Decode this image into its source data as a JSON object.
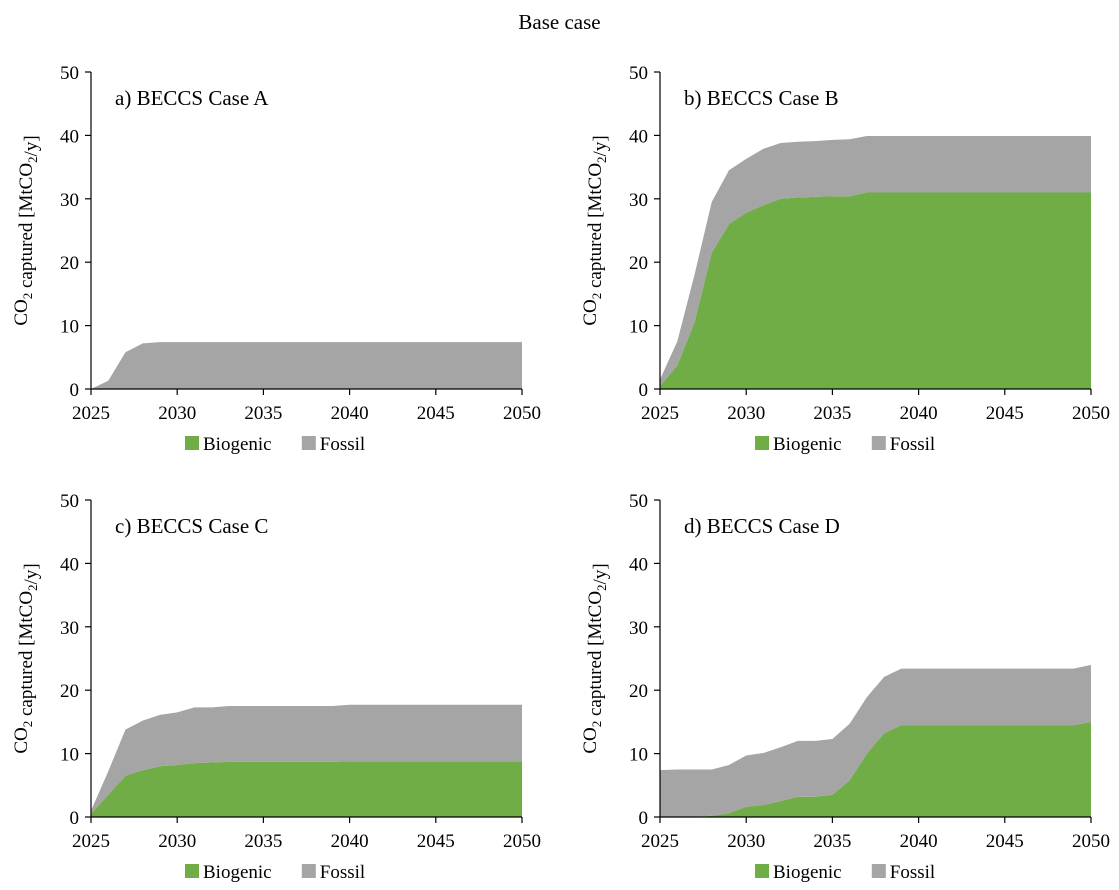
{
  "figure_title": "Base case",
  "colors": {
    "biogenic": "#70ad47",
    "fossil": "#a5a5a5",
    "axis": "#000000"
  },
  "chart_data": [
    {
      "type": "area",
      "title": "a) BECCS Case A",
      "ylabel": "CO2 captured [MtCO2/y]",
      "ylim": [
        0,
        50
      ],
      "yticks": [
        0,
        10,
        20,
        30,
        40,
        50
      ],
      "xlim": [
        2025,
        2050
      ],
      "xticks": [
        2025,
        2030,
        2035,
        2040,
        2045,
        2050
      ],
      "stacked": true,
      "legend_position": "bottom",
      "x": [
        2025,
        2026,
        2027,
        2028,
        2029,
        2030,
        2031,
        2032,
        2033,
        2034,
        2035,
        2036,
        2037,
        2038,
        2039,
        2040,
        2041,
        2042,
        2043,
        2044,
        2045,
        2046,
        2047,
        2048,
        2049,
        2050
      ],
      "series": [
        {
          "name": "Biogenic",
          "color": "#70ad47",
          "values": [
            0,
            0,
            0,
            0,
            0,
            0,
            0,
            0,
            0,
            0,
            0,
            0,
            0,
            0,
            0,
            0,
            0,
            0,
            0,
            0,
            0,
            0,
            0,
            0,
            0,
            0
          ]
        },
        {
          "name": "Fossil",
          "color": "#a5a5a5",
          "values": [
            0,
            1.3,
            5.8,
            7.2,
            7.4,
            7.4,
            7.4,
            7.4,
            7.4,
            7.4,
            7.4,
            7.4,
            7.4,
            7.4,
            7.4,
            7.4,
            7.4,
            7.4,
            7.4,
            7.4,
            7.4,
            7.4,
            7.4,
            7.4,
            7.4,
            7.4
          ]
        }
      ]
    },
    {
      "type": "area",
      "title": "b) BECCS Case B",
      "ylabel": "CO2 captured [MtCO2/y]",
      "ylim": [
        0,
        50
      ],
      "yticks": [
        0,
        10,
        20,
        30,
        40,
        50
      ],
      "xlim": [
        2025,
        2050
      ],
      "xticks": [
        2025,
        2030,
        2035,
        2040,
        2045,
        2050
      ],
      "stacked": true,
      "legend_position": "bottom",
      "x": [
        2025,
        2026,
        2027,
        2028,
        2029,
        2030,
        2031,
        2032,
        2033,
        2034,
        2035,
        2036,
        2037,
        2038,
        2039,
        2040,
        2041,
        2042,
        2043,
        2044,
        2045,
        2046,
        2047,
        2048,
        2049,
        2050
      ],
      "series": [
        {
          "name": "Biogenic",
          "color": "#70ad47",
          "values": [
            0.5,
            3.7,
            10.5,
            21.5,
            26.0,
            27.8,
            29.0,
            30.0,
            30.2,
            30.3,
            30.4,
            30.4,
            31.0,
            31.0,
            31.0,
            31.0,
            31.0,
            31.0,
            31.0,
            31.0,
            31.0,
            31.0,
            31.0,
            31.0,
            31.0,
            31.0
          ]
        },
        {
          "name": "Fossil",
          "color": "#a5a5a5",
          "values": [
            1.0,
            3.8,
            7.5,
            8.0,
            8.5,
            8.5,
            8.9,
            8.8,
            8.8,
            8.8,
            8.9,
            9.0,
            8.9,
            8.9,
            8.9,
            8.9,
            8.9,
            8.9,
            8.9,
            8.9,
            8.9,
            8.9,
            8.9,
            8.9,
            8.9,
            8.9
          ]
        }
      ]
    },
    {
      "type": "area",
      "title": "c) BECCS Case C",
      "ylabel": "CO2 captured [MtCO2/y]",
      "ylim": [
        0,
        50
      ],
      "yticks": [
        0,
        10,
        20,
        30,
        40,
        50
      ],
      "xlim": [
        2025,
        2050
      ],
      "xticks": [
        2025,
        2030,
        2035,
        2040,
        2045,
        2050
      ],
      "stacked": true,
      "legend_position": "bottom",
      "x": [
        2025,
        2026,
        2027,
        2028,
        2029,
        2030,
        2031,
        2032,
        2033,
        2034,
        2035,
        2036,
        2037,
        2038,
        2039,
        2040,
        2041,
        2042,
        2043,
        2044,
        2045,
        2046,
        2047,
        2048,
        2049,
        2050
      ],
      "series": [
        {
          "name": "Biogenic",
          "color": "#70ad47",
          "values": [
            0.5,
            3.5,
            6.5,
            7.4,
            8.0,
            8.2,
            8.5,
            8.6,
            8.7,
            8.7,
            8.7,
            8.7,
            8.7,
            8.7,
            8.7,
            8.8,
            8.8,
            8.8,
            8.8,
            8.8,
            8.8,
            8.8,
            8.8,
            8.8,
            8.8,
            8.8
          ]
        },
        {
          "name": "Fossil",
          "color": "#a5a5a5",
          "values": [
            0.5,
            3.7,
            7.3,
            7.8,
            8.1,
            8.3,
            8.8,
            8.7,
            8.8,
            8.8,
            8.8,
            8.8,
            8.8,
            8.8,
            8.8,
            8.9,
            8.9,
            8.9,
            8.9,
            8.9,
            8.9,
            8.9,
            8.9,
            8.9,
            8.9,
            8.9
          ]
        }
      ]
    },
    {
      "type": "area",
      "title": "d) BECCS Case D",
      "ylabel": "CO2 captured [MtCO2/y]",
      "ylim": [
        0,
        50
      ],
      "yticks": [
        0,
        10,
        20,
        30,
        40,
        50
      ],
      "xlim": [
        2025,
        2050
      ],
      "xticks": [
        2025,
        2030,
        2035,
        2040,
        2045,
        2050
      ],
      "stacked": true,
      "legend_position": "bottom",
      "x": [
        2025,
        2026,
        2027,
        2028,
        2029,
        2030,
        2031,
        2032,
        2033,
        2034,
        2035,
        2036,
        2037,
        2038,
        2039,
        2040,
        2041,
        2042,
        2043,
        2044,
        2045,
        2046,
        2047,
        2048,
        2049,
        2050
      ],
      "series": [
        {
          "name": "Biogenic",
          "color": "#70ad47",
          "values": [
            0,
            0,
            0,
            0.2,
            0.6,
            1.6,
            1.9,
            2.5,
            3.2,
            3.2,
            3.5,
            5.8,
            10.0,
            13.2,
            14.5,
            14.5,
            14.5,
            14.5,
            14.5,
            14.5,
            14.5,
            14.5,
            14.5,
            14.5,
            14.5,
            15.0
          ]
        },
        {
          "name": "Fossil",
          "color": "#a5a5a5",
          "values": [
            7.4,
            7.5,
            7.5,
            7.3,
            7.6,
            8.1,
            8.2,
            8.5,
            8.8,
            8.8,
            8.8,
            8.9,
            8.9,
            8.9,
            8.9,
            8.9,
            8.9,
            8.9,
            8.9,
            8.9,
            8.9,
            8.9,
            8.9,
            8.9,
            8.9,
            9.0
          ]
        }
      ]
    }
  ]
}
